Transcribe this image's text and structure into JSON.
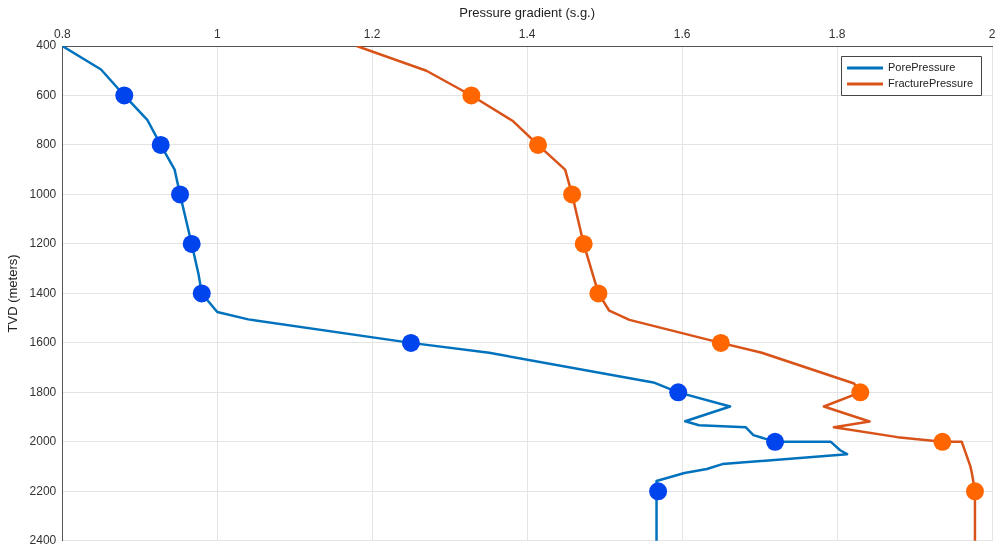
{
  "chart_data": {
    "type": "line",
    "xlabel": "Pressure gradient (s.g.)",
    "ylabel": "TVD (meters)",
    "xlim": [
      0.8,
      2
    ],
    "xticks": [
      0.8,
      1,
      1.2,
      1.4,
      1.6,
      1.8,
      2
    ],
    "ylim": [
      2400,
      400
    ],
    "yticks": [
      400,
      600,
      800,
      1000,
      1200,
      1400,
      1600,
      1800,
      2000,
      2200,
      2400
    ],
    "grid": true,
    "legend": "top right",
    "marker": "none",
    "line_style": "solid",
    "series": [
      {
        "name": "PorePressure",
        "color": "#0072bd",
        "x": [
          0.8,
          0.85,
          0.88,
          0.91,
          0.927,
          0.945,
          0.952,
          0.967,
          0.976,
          0.98,
          1.0,
          1.04,
          1.25,
          1.351,
          1.563,
          1.595,
          1.662,
          1.604,
          1.622,
          1.682,
          1.692,
          1.72,
          1.792,
          1.804,
          1.813,
          1.652,
          1.632,
          1.603,
          1.567,
          1.567
        ],
        "values": [
          400,
          495,
          600,
          700,
          800,
          900,
          1000,
          1200,
          1325,
          1400,
          1475,
          1505,
          1600,
          1640,
          1760,
          1800,
          1857,
          1917,
          1933,
          1941,
          1973,
          2000,
          2000,
          2034,
          2050,
          2090,
          2110,
          2126,
          2158,
          2400
        ]
      },
      {
        "name": "FracturePressure",
        "color": "#d95319",
        "x": [
          1.18,
          1.27,
          1.328,
          1.381,
          1.414,
          1.449,
          1.458,
          1.473,
          1.492,
          1.506,
          1.532,
          1.65,
          1.703,
          1.822,
          1.83,
          1.783,
          1.842,
          1.796,
          1.878,
          1.936,
          1.961,
          1.972,
          1.974,
          1.978,
          1.978
        ],
        "values": [
          400,
          500,
          600,
          702,
          800,
          900,
          1000,
          1200,
          1400,
          1470,
          1507,
          1600,
          1640,
          1764,
          1800,
          1857,
          1918,
          1941,
          1981,
          2000,
          2000,
          2098,
          2126,
          2200,
          2400
        ]
      },
      {
        "type": "scatter",
        "marker": "circle",
        "color": "#0044ee",
        "x": [
          0.88,
          0.927,
          0.952,
          0.967,
          0.98,
          1.25,
          1.595,
          1.72,
          1.569
        ],
        "values": [
          600,
          800,
          1000,
          1200,
          1400,
          1600,
          1800,
          2000,
          2200
        ]
      },
      {
        "type": "scatter",
        "marker": "circle",
        "color": "#ff6600",
        "x": [
          1.328,
          1.414,
          1.458,
          1.473,
          1.492,
          1.65,
          1.83,
          1.936,
          1.978
        ],
        "values": [
          600,
          800,
          1000,
          1200,
          1400,
          1600,
          1800,
          2000,
          2200
        ]
      }
    ]
  }
}
